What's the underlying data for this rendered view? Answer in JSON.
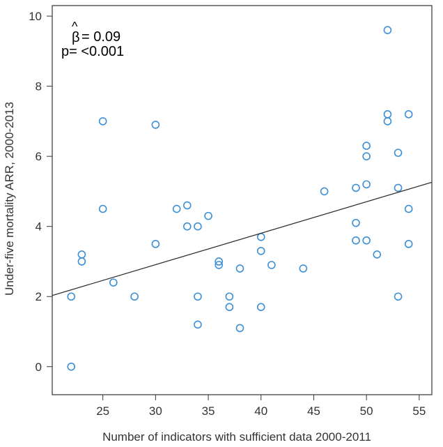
{
  "chart_data": {
    "type": "scatter",
    "title": "",
    "xlabel": "Number of indicators with sufficient data 2000-2011",
    "ylabel": "Under-five mortality ARR, 2000-2013",
    "xlim": [
      20.2,
      56.2
    ],
    "ylim": [
      -0.8,
      10.3
    ],
    "xticks": [
      25,
      30,
      35,
      40,
      45,
      50,
      55
    ],
    "yticks": [
      0,
      2,
      4,
      6,
      8,
      10
    ],
    "grid": false,
    "point_color": "#3a8fd6",
    "line_color": "#333333",
    "annotations": {
      "beta_hat": "^",
      "beta_symbol": "β",
      "beta_value": "= 0.09",
      "p_text": "p= <0.001"
    },
    "regression_line": {
      "x": [
        20.2,
        56.2
      ],
      "y": [
        2.03,
        5.26
      ]
    },
    "points": [
      {
        "x": 22,
        "y": 2.0
      },
      {
        "x": 22,
        "y": 0.0
      },
      {
        "x": 23,
        "y": 3.2
      },
      {
        "x": 23,
        "y": 3.0
      },
      {
        "x": 25,
        "y": 7.0
      },
      {
        "x": 25,
        "y": 4.5
      },
      {
        "x": 26,
        "y": 2.4
      },
      {
        "x": 28,
        "y": 2.0
      },
      {
        "x": 30,
        "y": 6.9
      },
      {
        "x": 30,
        "y": 3.5
      },
      {
        "x": 32,
        "y": 4.5
      },
      {
        "x": 33,
        "y": 4.6
      },
      {
        "x": 33,
        "y": 4.0
      },
      {
        "x": 34,
        "y": 4.0
      },
      {
        "x": 34,
        "y": 2.0
      },
      {
        "x": 34,
        "y": 1.2
      },
      {
        "x": 35,
        "y": 4.3
      },
      {
        "x": 36,
        "y": 3.0
      },
      {
        "x": 36,
        "y": 2.9
      },
      {
        "x": 37,
        "y": 2.0
      },
      {
        "x": 37,
        "y": 1.7
      },
      {
        "x": 38,
        "y": 2.8
      },
      {
        "x": 38,
        "y": 1.1
      },
      {
        "x": 40,
        "y": 3.7
      },
      {
        "x": 40,
        "y": 3.3
      },
      {
        "x": 40,
        "y": 1.7
      },
      {
        "x": 41,
        "y": 2.9
      },
      {
        "x": 44,
        "y": 2.8
      },
      {
        "x": 46,
        "y": 5.0
      },
      {
        "x": 49,
        "y": 5.1
      },
      {
        "x": 49,
        "y": 4.1
      },
      {
        "x": 49,
        "y": 3.6
      },
      {
        "x": 50,
        "y": 6.3
      },
      {
        "x": 50,
        "y": 6.0
      },
      {
        "x": 50,
        "y": 5.2
      },
      {
        "x": 50,
        "y": 3.6
      },
      {
        "x": 51,
        "y": 3.2
      },
      {
        "x": 52,
        "y": 9.6
      },
      {
        "x": 52,
        "y": 7.2
      },
      {
        "x": 52,
        "y": 7.0
      },
      {
        "x": 53,
        "y": 6.1
      },
      {
        "x": 53,
        "y": 5.1
      },
      {
        "x": 53,
        "y": 2.0
      },
      {
        "x": 54,
        "y": 7.2
      },
      {
        "x": 54,
        "y": 4.5
      },
      {
        "x": 54,
        "y": 3.5
      }
    ]
  }
}
